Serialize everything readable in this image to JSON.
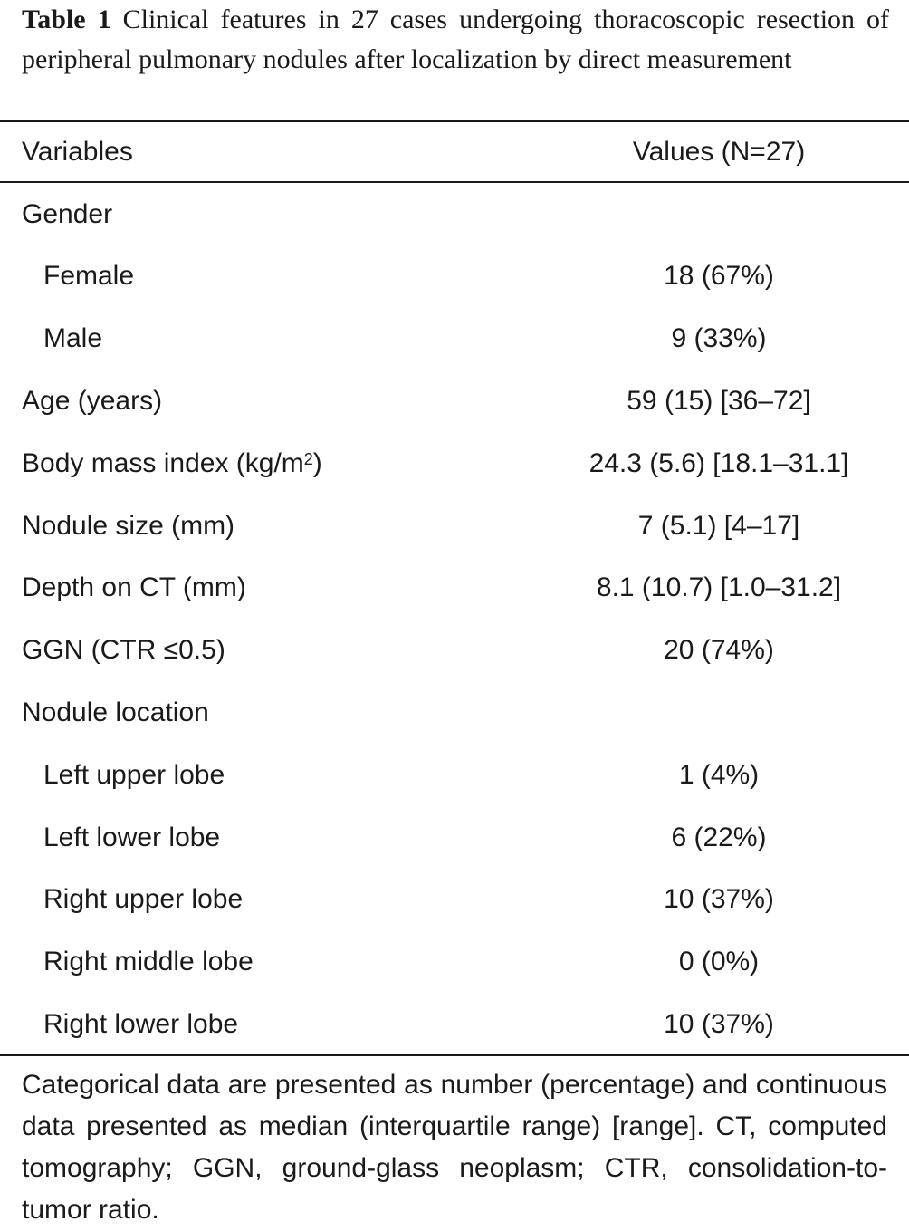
{
  "caption": {
    "label": "Table 1",
    "text": "Clinical features in 27 cases undergoing thoracoscopic resection of peripheral pulmonary nodules after localization by direct measurement"
  },
  "table": {
    "headers": {
      "variables": "Variables",
      "values": "Values (N=27)"
    },
    "rows": [
      {
        "label": "Gender",
        "value": "",
        "indent": false
      },
      {
        "label": "Female",
        "value": "18 (67%)",
        "indent": true
      },
      {
        "label": "Male",
        "value": "9 (33%)",
        "indent": true
      },
      {
        "label": "Age (years)",
        "value": "59 (15) [36–72]",
        "indent": false
      },
      {
        "label": "Body mass index (kg/m",
        "label_sup": "2",
        "label_after": ")",
        "value": "24.3 (5.6) [18.1–31.1]",
        "indent": false
      },
      {
        "label": "Nodule size (mm)",
        "value": "7 (5.1) [4–17]",
        "indent": false
      },
      {
        "label": "Depth on CT (mm)",
        "value": "8.1 (10.7) [1.0–31.2]",
        "indent": false
      },
      {
        "label": "GGN (CTR ≤0.5)",
        "value": "20 (74%)",
        "indent": false
      },
      {
        "label": "Nodule location",
        "value": "",
        "indent": false
      },
      {
        "label": "Left upper lobe",
        "value": "1 (4%)",
        "indent": true
      },
      {
        "label": "Left lower lobe",
        "value": "6 (22%)",
        "indent": true
      },
      {
        "label": "Right upper lobe",
        "value": "10 (37%)",
        "indent": true
      },
      {
        "label": "Right middle lobe",
        "value": "0 (0%)",
        "indent": true
      },
      {
        "label": "Right lower lobe",
        "value": "10 (37%)",
        "indent": true
      }
    ]
  },
  "footnote": "Categorical data are presented as number (percentage) and continuous data presented as median (interquartile range) [range]. CT, computed tomography; GGN, ground-glass neoplasm; CTR, consolidation-to-tumor ratio."
}
